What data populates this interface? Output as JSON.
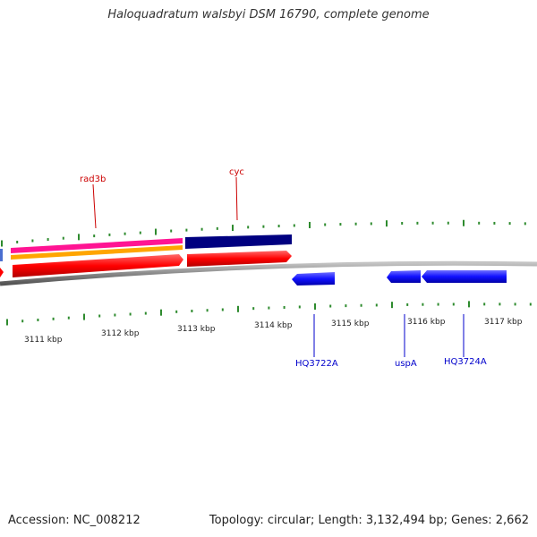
{
  "title": "Haloquadratum walsbyi DSM 16790, complete genome",
  "footer": {
    "accession": "Accession: NC_008212",
    "summary": "Topology: circular; Length: 3,132,494 bp; Genes: 2,662"
  },
  "colors": {
    "backbone": "#8a8a8a",
    "tick": "#2e8b2e",
    "forward_cds": "#ff0000",
    "reverse_cds": "#0000ff",
    "top_label": "#cc0000",
    "bottom_label": "#0000cc",
    "rad3b_feature": "#ff1493",
    "orange_feature": "#ffa500",
    "cyc_feature": "#000080"
  },
  "scale": {
    "unit": "kbp",
    "major_labels": [
      "3111 kbp",
      "3112 kbp",
      "3113 kbp",
      "3114 kbp",
      "3115 kbp",
      "3116 kbp",
      "3117 kbp"
    ]
  },
  "genes_top": [
    {
      "name": "rad3b"
    },
    {
      "name": "cyc"
    }
  ],
  "genes_bottom": [
    {
      "name": "HQ3722A"
    },
    {
      "name": "uspA"
    },
    {
      "name": "HQ3724A"
    }
  ]
}
